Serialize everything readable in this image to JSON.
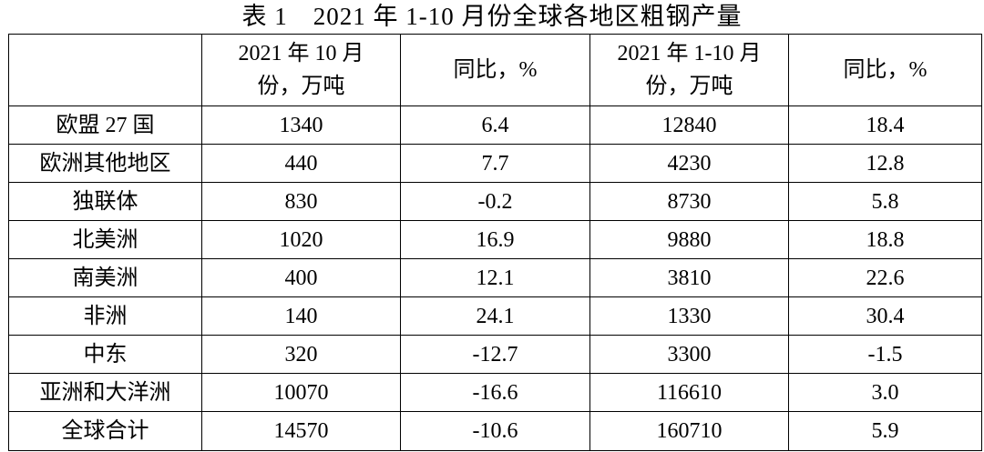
{
  "caption": "表 1　2021 年 1-10 月份全球各地区粗钢产量",
  "table": {
    "headers": [
      "",
      "2021 年 10 月份，万吨",
      "同比，%",
      "2021 年 1-10 月份，万吨",
      "同比，%"
    ],
    "rows": [
      {
        "region": "欧盟 27 国",
        "oct_output": "1340",
        "oct_yoy": "6.4",
        "ytd_output": "12840",
        "ytd_yoy": "18.4"
      },
      {
        "region": "欧洲其他地区",
        "oct_output": "440",
        "oct_yoy": "7.7",
        "ytd_output": "4230",
        "ytd_yoy": "12.8"
      },
      {
        "region": "独联体",
        "oct_output": "830",
        "oct_yoy": "-0.2",
        "ytd_output": "8730",
        "ytd_yoy": "5.8"
      },
      {
        "region": "北美洲",
        "oct_output": "1020",
        "oct_yoy": "16.9",
        "ytd_output": "9880",
        "ytd_yoy": "18.8"
      },
      {
        "region": "南美洲",
        "oct_output": "400",
        "oct_yoy": "12.1",
        "ytd_output": "3810",
        "ytd_yoy": "22.6"
      },
      {
        "region": "非洲",
        "oct_output": "140",
        "oct_yoy": "24.1",
        "ytd_output": "1330",
        "ytd_yoy": "30.4"
      },
      {
        "region": "中东",
        "oct_output": "320",
        "oct_yoy": "-12.7",
        "ytd_output": "3300",
        "ytd_yoy": "-1.5"
      },
      {
        "region": "亚洲和大洋洲",
        "oct_output": "10070",
        "oct_yoy": "-16.6",
        "ytd_output": "116610",
        "ytd_yoy": "3.0"
      }
    ],
    "total": {
      "region": "全球合计",
      "oct_output": "14570",
      "oct_yoy": "-10.6",
      "ytd_output": "160710",
      "ytd_yoy": "5.9"
    }
  }
}
